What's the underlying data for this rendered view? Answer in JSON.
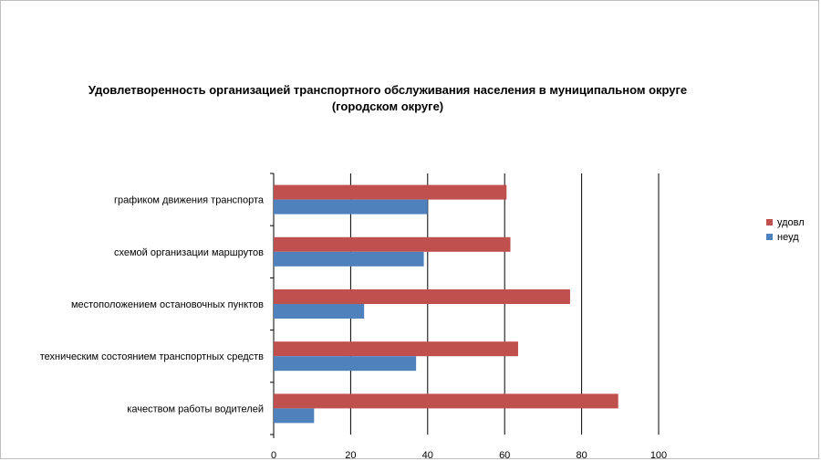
{
  "chart_data": {
    "type": "bar",
    "orientation": "horizontal",
    "title_line1": "Удовлетворенность организацией транспортного обслуживания населения в муниципальном округе",
    "title_line2": "(городском округе)",
    "categories": [
      "графиком движения транспорта",
      "схемой организации маршрутов",
      "местоположением остановочных пунктов",
      "техническим состоянием транспортных средств",
      "качеством работы водителей"
    ],
    "series": [
      {
        "name": "удовл",
        "color": "#C0504D",
        "values": [
          60.5,
          61.5,
          77,
          63.5,
          89.5
        ]
      },
      {
        "name": "неуд",
        "color": "#4F81BD",
        "values": [
          40,
          39,
          23.5,
          37,
          10.5
        ]
      }
    ],
    "xlim": [
      0,
      100
    ],
    "xticks": [
      0,
      20,
      40,
      60,
      80,
      100
    ],
    "grid": true,
    "legend_position": "right"
  }
}
